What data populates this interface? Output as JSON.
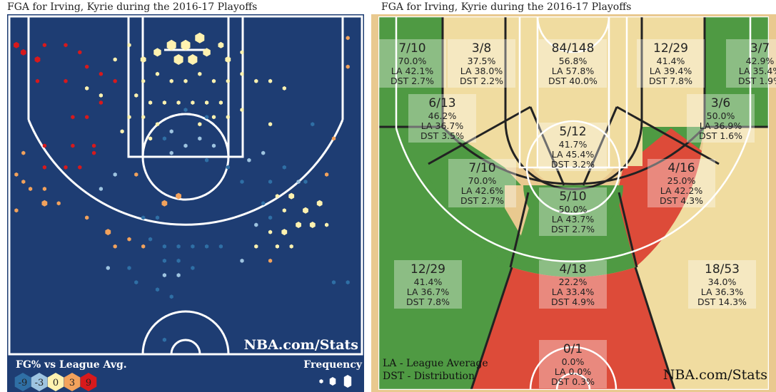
{
  "left_panel": {
    "title": "FGA for Irving, Kyrie during the 2016-17 Playoffs",
    "watermark": "NBA.com/Stats",
    "legend_title": "FG% vs League Avg.",
    "legend_values": [
      "-9",
      "-3",
      "0",
      "3",
      "9"
    ],
    "legend_colors": [
      "#2f6fa5",
      "#9ec4e0",
      "#fff2b0",
      "#f2a25c",
      "#d7191c"
    ],
    "frequency_label": "Frequency",
    "court_bg": "#1e3d73",
    "line_color": "#ffffff"
  },
  "right_panel": {
    "title": "FGA for Irving, Kyrie during the 2016-17 Playoffs",
    "watermark": "NBA.com/Stats",
    "legend_la": "LA - League Average",
    "legend_dst": "DST - Distribution",
    "colors": {
      "green": "#4f9a43",
      "tan": "#f0dca0",
      "red": "#dd4b39",
      "wood": "#e9c98f"
    }
  },
  "chart_data": [
    {
      "type": "scatter",
      "title": "FGA for Irving, Kyrie during the 2016-17 Playoffs",
      "description_fields": "hexbin shot chart; x,y in feet (x: -25..25 sideline to sideline, y: feet from baseline); level = FG% vs league average bucket; size = frequency bucket 1-4",
      "xlim": [
        -25,
        25
      ],
      "ylim": [
        0,
        47
      ],
      "legend": {
        "title": "FG% vs League Avg.",
        "levels": [
          -9,
          -3,
          0,
          3,
          9
        ]
      },
      "points": [
        {
          "x": -24,
          "y": 43,
          "level": 9,
          "size": 2
        },
        {
          "x": -23,
          "y": 42,
          "level": 9,
          "size": 2
        },
        {
          "x": -21,
          "y": 41,
          "level": 9,
          "size": 2
        },
        {
          "x": -20,
          "y": 43,
          "level": 9,
          "size": 1
        },
        {
          "x": -17,
          "y": 43,
          "level": 9,
          "size": 1
        },
        {
          "x": -15,
          "y": 42,
          "level": 9,
          "size": 1
        },
        {
          "x": -14,
          "y": 40,
          "level": 9,
          "size": 1
        },
        {
          "x": -12,
          "y": 39,
          "level": 9,
          "size": 1
        },
        {
          "x": -10,
          "y": 38,
          "level": 9,
          "size": 1
        },
        {
          "x": -21,
          "y": 38,
          "level": 9,
          "size": 1
        },
        {
          "x": -17,
          "y": 38,
          "level": 9,
          "size": 1
        },
        {
          "x": -12,
          "y": 35,
          "level": 9,
          "size": 1
        },
        {
          "x": -16,
          "y": 33,
          "level": 9,
          "size": 1
        },
        {
          "x": -14,
          "y": 33,
          "level": 9,
          "size": 1
        },
        {
          "x": -20,
          "y": 29,
          "level": 9,
          "size": 1
        },
        {
          "x": -16,
          "y": 29,
          "level": 9,
          "size": 1
        },
        {
          "x": -13,
          "y": 29,
          "level": 9,
          "size": 1
        },
        {
          "x": -20,
          "y": 26,
          "level": 9,
          "size": 1
        },
        {
          "x": -17,
          "y": 26,
          "level": 9,
          "size": 1
        },
        {
          "x": -15,
          "y": 26,
          "level": 9,
          "size": 1
        },
        {
          "x": -13,
          "y": 28,
          "level": 9,
          "size": 1
        },
        {
          "x": -23,
          "y": 28,
          "level": 3,
          "size": 1
        },
        {
          "x": -24,
          "y": 25,
          "level": 3,
          "size": 1
        },
        {
          "x": -23,
          "y": 24,
          "level": 3,
          "size": 1
        },
        {
          "x": -22,
          "y": 23,
          "level": 3,
          "size": 1
        },
        {
          "x": -20,
          "y": 23,
          "level": 3,
          "size": 1
        },
        {
          "x": -24,
          "y": 20,
          "level": 3,
          "size": 1
        },
        {
          "x": -20,
          "y": 21,
          "level": 3,
          "size": 2
        },
        {
          "x": -18,
          "y": 21,
          "level": 3,
          "size": 1
        },
        {
          "x": -14,
          "y": 19,
          "level": 3,
          "size": 1
        },
        {
          "x": -11,
          "y": 17,
          "level": 3,
          "size": 2
        },
        {
          "x": -7,
          "y": 25,
          "level": 3,
          "size": 1
        },
        {
          "x": -3,
          "y": 21,
          "level": 3,
          "size": 2
        },
        {
          "x": -1,
          "y": 22,
          "level": 3,
          "size": 2
        },
        {
          "x": -10,
          "y": 15,
          "level": 3,
          "size": 1
        },
        {
          "x": -8,
          "y": 16,
          "level": 3,
          "size": 1
        },
        {
          "x": -6,
          "y": 15,
          "level": 3,
          "size": 1
        },
        {
          "x": 20,
          "y": 25,
          "level": 3,
          "size": 1
        },
        {
          "x": 21,
          "y": 30,
          "level": 3,
          "size": 1
        },
        {
          "x": 23,
          "y": 40,
          "level": 3,
          "size": 1
        },
        {
          "x": 23,
          "y": 44,
          "level": 3,
          "size": 1
        },
        {
          "x": 12,
          "y": 13,
          "level": 3,
          "size": 1
        },
        {
          "x": -10,
          "y": 41,
          "level": 0,
          "size": 1
        },
        {
          "x": -8,
          "y": 43,
          "level": 0,
          "size": 1
        },
        {
          "x": -6,
          "y": 41,
          "level": 0,
          "size": 2
        },
        {
          "x": -4,
          "y": 42,
          "level": 0,
          "size": 3
        },
        {
          "x": -2,
          "y": 43,
          "level": 0,
          "size": 4
        },
        {
          "x": 0,
          "y": 43,
          "level": 0,
          "size": 4
        },
        {
          "x": 2,
          "y": 44,
          "level": 0,
          "size": 4
        },
        {
          "x": -1,
          "y": 41,
          "level": 0,
          "size": 4
        },
        {
          "x": 1,
          "y": 41,
          "level": 0,
          "size": 4
        },
        {
          "x": 3,
          "y": 42,
          "level": 0,
          "size": 3
        },
        {
          "x": 5,
          "y": 43,
          "level": 0,
          "size": 2
        },
        {
          "x": 6,
          "y": 41,
          "level": 0,
          "size": 2
        },
        {
          "x": 8,
          "y": 42,
          "level": 0,
          "size": 1
        },
        {
          "x": -6,
          "y": 38,
          "level": 0,
          "size": 1
        },
        {
          "x": -4,
          "y": 39,
          "level": 0,
          "size": 1
        },
        {
          "x": -2,
          "y": 38,
          "level": 0,
          "size": 1
        },
        {
          "x": 0,
          "y": 38,
          "level": 0,
          "size": 1
        },
        {
          "x": 2,
          "y": 39,
          "level": 0,
          "size": 1
        },
        {
          "x": 4,
          "y": 38,
          "level": 0,
          "size": 1
        },
        {
          "x": 6,
          "y": 38,
          "level": 0,
          "size": 1
        },
        {
          "x": 8,
          "y": 39,
          "level": 0,
          "size": 1
        },
        {
          "x": -7,
          "y": 36,
          "level": 0,
          "size": 1
        },
        {
          "x": -5,
          "y": 35,
          "level": 0,
          "size": 1
        },
        {
          "x": -3,
          "y": 35,
          "level": 0,
          "size": 1
        },
        {
          "x": -1,
          "y": 35,
          "level": 0,
          "size": 1
        },
        {
          "x": 1,
          "y": 35,
          "level": 0,
          "size": 1
        },
        {
          "x": 3,
          "y": 35,
          "level": 0,
          "size": 1
        },
        {
          "x": 5,
          "y": 35,
          "level": 0,
          "size": 1
        },
        {
          "x": -8,
          "y": 33,
          "level": 0,
          "size": 1
        },
        {
          "x": -6,
          "y": 33,
          "level": 0,
          "size": 1
        },
        {
          "x": -4,
          "y": 32,
          "level": 0,
          "size": 1
        },
        {
          "x": 2,
          "y": 32,
          "level": 0,
          "size": 1
        },
        {
          "x": 4,
          "y": 33,
          "level": 0,
          "size": 1
        },
        {
          "x": 6,
          "y": 33,
          "level": 0,
          "size": 1
        },
        {
          "x": 8,
          "y": 34,
          "level": 0,
          "size": 1
        },
        {
          "x": -9,
          "y": 31,
          "level": 0,
          "size": 1
        },
        {
          "x": -5,
          "y": 30,
          "level": 0,
          "size": 1
        },
        {
          "x": -12,
          "y": 36,
          "level": 0,
          "size": 1
        },
        {
          "x": -14,
          "y": 37,
          "level": 0,
          "size": 1
        },
        {
          "x": 10,
          "y": 38,
          "level": 0,
          "size": 1
        },
        {
          "x": 12,
          "y": 38,
          "level": 0,
          "size": 1
        },
        {
          "x": 14,
          "y": 37,
          "level": 0,
          "size": 1
        },
        {
          "x": 12,
          "y": 32,
          "level": 0,
          "size": 1
        },
        {
          "x": 13,
          "y": 22,
          "level": 0,
          "size": 1
        },
        {
          "x": 15,
          "y": 22,
          "level": 0,
          "size": 2
        },
        {
          "x": 17,
          "y": 20,
          "level": 0,
          "size": 2
        },
        {
          "x": 19,
          "y": 21,
          "level": 0,
          "size": 2
        },
        {
          "x": 14,
          "y": 20,
          "level": 0,
          "size": 1
        },
        {
          "x": 16,
          "y": 18,
          "level": 0,
          "size": 2
        },
        {
          "x": 18,
          "y": 18,
          "level": 0,
          "size": 2
        },
        {
          "x": 20,
          "y": 18,
          "level": 0,
          "size": 1
        },
        {
          "x": 14,
          "y": 17,
          "level": 0,
          "size": 2
        },
        {
          "x": 12,
          "y": 17,
          "level": 0,
          "size": 1
        },
        {
          "x": 10,
          "y": 15,
          "level": 0,
          "size": 1
        },
        {
          "x": 13,
          "y": 15,
          "level": 0,
          "size": 1
        },
        {
          "x": 15,
          "y": 15,
          "level": 0,
          "size": 1
        },
        {
          "x": -2,
          "y": 31,
          "level": -3,
          "size": 1
        },
        {
          "x": 0,
          "y": 29,
          "level": -3,
          "size": 1
        },
        {
          "x": 2,
          "y": 30,
          "level": -3,
          "size": 1
        },
        {
          "x": 4,
          "y": 29,
          "level": -3,
          "size": 1
        },
        {
          "x": -2,
          "y": 28,
          "level": -3,
          "size": 1
        },
        {
          "x": -10,
          "y": 25,
          "level": -3,
          "size": 1
        },
        {
          "x": -12,
          "y": 23,
          "level": -3,
          "size": 1
        },
        {
          "x": 9,
          "y": 27,
          "level": -3,
          "size": 1
        },
        {
          "x": 11,
          "y": 28,
          "level": -3,
          "size": 1
        },
        {
          "x": 10,
          "y": 18,
          "level": -3,
          "size": 1
        },
        {
          "x": 8,
          "y": 13,
          "level": -3,
          "size": 1
        },
        {
          "x": -3,
          "y": 11,
          "level": -3,
          "size": 1
        },
        {
          "x": -1,
          "y": 11,
          "level": -3,
          "size": 1
        },
        {
          "x": 16,
          "y": 24,
          "level": -3,
          "size": 1
        },
        {
          "x": -11,
          "y": 12,
          "level": -3,
          "size": 1
        },
        {
          "x": 0,
          "y": 34,
          "level": -9,
          "size": 1
        },
        {
          "x": 3,
          "y": 33,
          "level": -9,
          "size": 1
        },
        {
          "x": -3,
          "y": 30,
          "level": -9,
          "size": 1
        },
        {
          "x": 3,
          "y": 27,
          "level": -9,
          "size": 1
        },
        {
          "x": 6,
          "y": 26,
          "level": -9,
          "size": 1
        },
        {
          "x": 8,
          "y": 24,
          "level": -9,
          "size": 1
        },
        {
          "x": 11,
          "y": 21,
          "level": -9,
          "size": 1
        },
        {
          "x": 12,
          "y": 24,
          "level": -9,
          "size": 1
        },
        {
          "x": 14,
          "y": 26,
          "level": -9,
          "size": 1
        },
        {
          "x": 17,
          "y": 24,
          "level": -9,
          "size": 1
        },
        {
          "x": 18,
          "y": 32,
          "level": -9,
          "size": 1
        },
        {
          "x": -6,
          "y": 19,
          "level": -9,
          "size": 1
        },
        {
          "x": -4,
          "y": 19,
          "level": -9,
          "size": 1
        },
        {
          "x": -5,
          "y": 16,
          "level": -9,
          "size": 1
        },
        {
          "x": -3,
          "y": 15,
          "level": -9,
          "size": 1
        },
        {
          "x": -1,
          "y": 15,
          "level": -9,
          "size": 1
        },
        {
          "x": 1,
          "y": 15,
          "level": -9,
          "size": 1
        },
        {
          "x": 3,
          "y": 15,
          "level": -9,
          "size": 1
        },
        {
          "x": 5,
          "y": 15,
          "level": -9,
          "size": 1
        },
        {
          "x": -3,
          "y": 13,
          "level": -9,
          "size": 1
        },
        {
          "x": -1,
          "y": 13,
          "level": -9,
          "size": 1
        },
        {
          "x": -8,
          "y": 12,
          "level": -9,
          "size": 1
        },
        {
          "x": 1,
          "y": 12,
          "level": -9,
          "size": 1
        },
        {
          "x": -7,
          "y": 10,
          "level": -9,
          "size": 1
        },
        {
          "x": -4,
          "y": 9,
          "level": -9,
          "size": 1
        },
        {
          "x": -2,
          "y": 8,
          "level": -9,
          "size": 1
        },
        {
          "x": 12,
          "y": 19,
          "level": -9,
          "size": 1
        },
        {
          "x": 21,
          "y": 10,
          "level": -9,
          "size": 1
        },
        {
          "x": 23,
          "y": 10,
          "level": -9,
          "size": 1
        },
        {
          "x": -3,
          "y": 2,
          "level": -9,
          "size": 1
        }
      ]
    },
    {
      "type": "table",
      "title": "FGA for Irving, Kyrie during the 2016-17 Playoffs",
      "description_fields": "shooting zones: made/attempted, FG%, league average FG% (LA), share of attempts (DST)",
      "legend": [
        "LA - League Average",
        "DST - Distribution"
      ],
      "zones": [
        {
          "fgm_fga": "7/10",
          "pct": "70.0%",
          "la": "LA 42.1%",
          "dst": "DST 2.7%",
          "fill": "green"
        },
        {
          "fgm_fga": "3/8",
          "pct": "37.5%",
          "la": "LA 38.0%",
          "dst": "DST 2.2%",
          "fill": "tan"
        },
        {
          "fgm_fga": "84/148",
          "pct": "56.8%",
          "la": "LA 57.8%",
          "dst": "DST 40.0%",
          "fill": "tan"
        },
        {
          "fgm_fga": "12/29",
          "pct": "41.4%",
          "la": "LA 39.4%",
          "dst": "DST 7.8%",
          "fill": "tan"
        },
        {
          "fgm_fga": "3/7",
          "pct": "42.9%",
          "la": "LA 35.4%",
          "dst": "DST 1.9%",
          "fill": "green"
        },
        {
          "fgm_fga": "6/13",
          "pct": "46.2%",
          "la": "LA 36.7%",
          "dst": "DST 3.5%",
          "fill": "green"
        },
        {
          "fgm_fga": "5/12",
          "pct": "41.7%",
          "la": "LA 45.4%",
          "dst": "DST 3.2%",
          "fill": "tan"
        },
        {
          "fgm_fga": "3/6",
          "pct": "50.0%",
          "la": "LA 36.9%",
          "dst": "DST 1.6%",
          "fill": "green"
        },
        {
          "fgm_fga": "7/10",
          "pct": "70.0%",
          "la": "LA 42.6%",
          "dst": "DST 2.7%",
          "fill": "green"
        },
        {
          "fgm_fga": "5/10",
          "pct": "50.0%",
          "la": "LA 43.7%",
          "dst": "DST 2.7%",
          "fill": "green"
        },
        {
          "fgm_fga": "4/16",
          "pct": "25.0%",
          "la": "LA 42.2%",
          "dst": "DST 4.3%",
          "fill": "red"
        },
        {
          "fgm_fga": "12/29",
          "pct": "41.4%",
          "la": "LA 36.7%",
          "dst": "DST 7.8%",
          "fill": "green"
        },
        {
          "fgm_fga": "4/18",
          "pct": "22.2%",
          "la": "LA 33.4%",
          "dst": "DST 4.9%",
          "fill": "red"
        },
        {
          "fgm_fga": "18/53",
          "pct": "34.0%",
          "la": "LA 36.3%",
          "dst": "DST 14.3%",
          "fill": "tan"
        },
        {
          "fgm_fga": "0/1",
          "pct": "0.0%",
          "la": "LA 0.0%",
          "dst": "DST 0.3%",
          "fill": "red"
        }
      ]
    }
  ]
}
